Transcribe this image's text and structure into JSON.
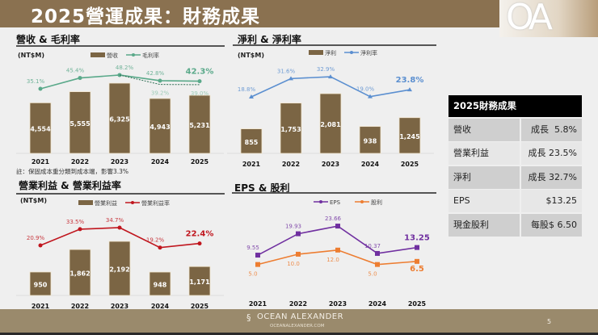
{
  "header": {
    "title": "2025營運成果：財務成果",
    "logo_text": "OA"
  },
  "colors": {
    "bar": "#7b6544",
    "gross_margin": "#5aa98a",
    "net_margin": "#5b8fd0",
    "op_margin": "#c0161e",
    "eps": "#7030a0",
    "dividend": "#ed7d31",
    "header": "#8a7150",
    "footer": "#9a8a6c"
  },
  "chart_data": [
    {
      "type": "bar+line",
      "title": "營收 & 毛利率",
      "unit": "(NT$M)",
      "categories": [
        "2021",
        "2022",
        "2023",
        "2024",
        "2025"
      ],
      "series": [
        {
          "name": "營收",
          "kind": "bar",
          "values": [
            4554,
            5555,
            6325,
            4943,
            5231
          ],
          "labels": [
            "4,554",
            "5,555",
            "6,325",
            "4,943",
            "5,231"
          ]
        },
        {
          "name": "毛利率",
          "kind": "line",
          "values": [
            35.1,
            45.4,
            48.2,
            42.8,
            42.3
          ],
          "labels": [
            "35.1%",
            "45.4%",
            "48.2%",
            "42.8%",
            "42.3%"
          ]
        },
        {
          "kind": "dotted-line",
          "values": [
            null,
            null,
            48.2,
            39.2,
            39.0
          ],
          "labels": [
            null,
            null,
            null,
            "39.2%",
            "39.0%"
          ]
        }
      ],
      "note": "註：保固成本重分類到成本端，影響3.3%"
    },
    {
      "type": "bar+line",
      "title": "淨利 & 淨利率",
      "unit": "(NT$M)",
      "categories": [
        "2021",
        "2022",
        "2023",
        "2024",
        "2025"
      ],
      "series": [
        {
          "name": "淨利",
          "kind": "bar",
          "values": [
            855,
            1753,
            2081,
            938,
            1245
          ],
          "labels": [
            "855",
            "1,753",
            "2,081",
            "938",
            "1,245"
          ]
        },
        {
          "name": "淨利率",
          "kind": "line",
          "values": [
            18.8,
            31.6,
            32.9,
            19.0,
            23.8
          ],
          "labels": [
            "18.8%",
            "31.6%",
            "32.9%",
            "19.0%",
            "23.8%"
          ]
        }
      ]
    },
    {
      "type": "bar+line",
      "title": "營業利益 & 營業利益率",
      "unit": "(NT$M)",
      "categories": [
        "2021",
        "2022",
        "2023",
        "2024",
        "2025"
      ],
      "series": [
        {
          "name": "營業利益",
          "kind": "bar",
          "values": [
            950,
            1862,
            2192,
            948,
            1171
          ],
          "labels": [
            "950",
            "1,862",
            "2,192",
            "948",
            "1,171"
          ]
        },
        {
          "name": "營業利益率",
          "kind": "line",
          "values": [
            20.9,
            33.5,
            34.7,
            19.2,
            22.4
          ],
          "labels": [
            "20.9%",
            "33.5%",
            "34.7%",
            "19.2%",
            "22.4%"
          ]
        }
      ]
    },
    {
      "type": "line",
      "title": "EPS & 股利",
      "categories": [
        "2021",
        "2022",
        "2023",
        "2024",
        "2025"
      ],
      "series": [
        {
          "name": "EPS",
          "kind": "line",
          "values": [
            9.55,
            19.93,
            23.66,
            10.37,
            13.25
          ],
          "labels": [
            "9.55",
            "19.93",
            "23.66",
            "10.37",
            "13.25"
          ]
        },
        {
          "name": "股利",
          "kind": "line",
          "values": [
            5.0,
            10.0,
            12.0,
            5.0,
            6.5
          ],
          "labels": [
            "5.0",
            "10.0",
            "12.0",
            "5.0",
            "6.5"
          ]
        }
      ]
    }
  ],
  "summary": {
    "title": "2025財務成果",
    "rows": [
      {
        "label": "營收",
        "value": "成長  5.8%"
      },
      {
        "label": "營業利益",
        "value": "成長 23.5%"
      },
      {
        "label": "淨利",
        "value": "成長 32.7%"
      },
      {
        "label": "EPS",
        "value": "$13.25"
      },
      {
        "label": "現金股利",
        "value": "每股$ 6.50"
      }
    ]
  },
  "footer": {
    "brand": "OCEAN ALEXANDER",
    "url": "OCEANALEXANDER.COM",
    "page": "5"
  }
}
